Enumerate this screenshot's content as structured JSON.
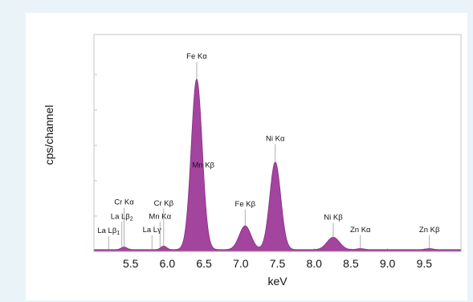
{
  "chart_data": {
    "type": "line",
    "xlabel": "keV",
    "ylabel": "cps/channel",
    "xlim": [
      5.0,
      10.0
    ],
    "ylim": [
      0,
      1.0
    ],
    "x_ticks": [
      5.5,
      6.0,
      6.5,
      7.0,
      7.5,
      8.0,
      8.5,
      9.0,
      9.5
    ],
    "x_tick_labels": [
      "5.5",
      "6.0",
      "6.5",
      "7.0",
      "7.5",
      "8.0",
      "8.5",
      "9.0",
      "9.5"
    ],
    "y_tick_labels_shown": false,
    "grid": false,
    "fill_color": "#a3449e",
    "line_color": "#8a2f86",
    "series": [
      {
        "peaks": [
          {
            "center": 5.41,
            "height": 0.015,
            "width": 0.04
          },
          {
            "center": 5.95,
            "height": 0.02,
            "width": 0.04
          },
          {
            "center": 6.4,
            "height": 0.965,
            "width": 0.075
          },
          {
            "center": 7.06,
            "height": 0.135,
            "width": 0.08
          },
          {
            "center": 7.47,
            "height": 0.495,
            "width": 0.075
          },
          {
            "center": 8.26,
            "height": 0.07,
            "width": 0.085
          },
          {
            "center": 8.63,
            "height": 0.006,
            "width": 0.05
          },
          {
            "center": 9.57,
            "height": 0.006,
            "width": 0.05
          }
        ],
        "baseline": 0.01
      }
    ],
    "peak_annotations": [
      {
        "text": "La Lβ",
        "sub": "1",
        "energy": 5.2,
        "label_y": 0.105
      },
      {
        "text": "La Lβ",
        "sub": "2",
        "energy": 5.38,
        "label_y": 0.185
      },
      {
        "text": "Cr Kα",
        "energy": 5.41,
        "label_y": 0.265
      },
      {
        "text": "La Lγ",
        "energy": 5.79,
        "label_y": 0.11
      },
      {
        "text": "Mn Kα",
        "energy": 5.9,
        "label_y": 0.185
      },
      {
        "text": "Cr Kβ",
        "energy": 5.95,
        "label_y": 0.26
      },
      {
        "text": "Fe Kα",
        "energy": 6.4,
        "label_y": 1.09
      },
      {
        "text": "Mn Kβ",
        "energy": 6.49,
        "label_y": 0.475
      },
      {
        "text": "Fe Kβ",
        "energy": 7.06,
        "label_y": 0.255
      },
      {
        "text": "Ni Kα",
        "energy": 7.47,
        "label_y": 0.625
      },
      {
        "text": "Ni Kβ",
        "energy": 8.26,
        "label_y": 0.18
      },
      {
        "text": "Zn Kα",
        "energy": 8.63,
        "label_y": 0.11
      },
      {
        "text": "Zn Kβ",
        "energy": 9.57,
        "label_y": 0.11
      }
    ]
  }
}
